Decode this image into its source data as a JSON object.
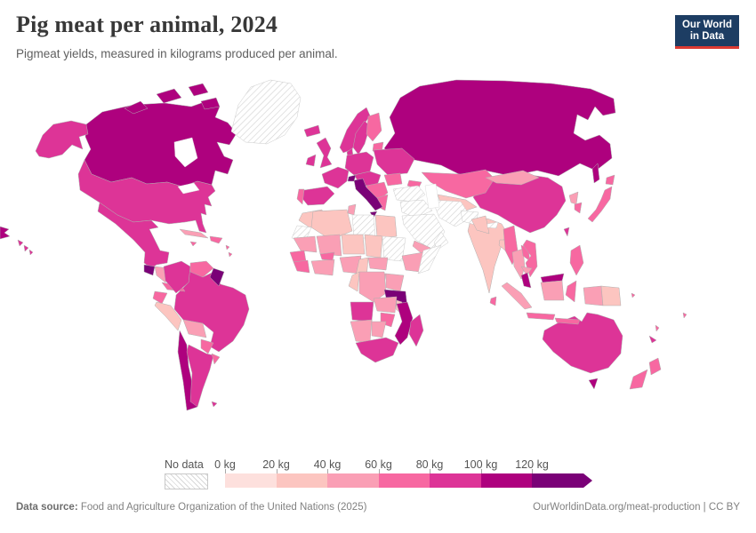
{
  "header": {
    "title": "Pig meat per animal, 2024",
    "subtitle": "Pigmeat yields, measured in kilograms produced per animal.",
    "logo": {
      "line1": "Our World",
      "line2": "in Data",
      "bg_color": "#1d3d63",
      "accent_color": "#dc3a32"
    }
  },
  "legend": {
    "no_data_label": "No data",
    "tick_labels": [
      "0 kg",
      "20 kg",
      "40 kg",
      "60 kg",
      "80 kg",
      "100 kg",
      "120 kg"
    ]
  },
  "footer": {
    "source_label": "Data source:",
    "source_text": " Food and Agriculture Organization of the United Nations (2025)",
    "credit_text": "OurWorldinData.org/meat-production | CC BY"
  },
  "chart_data": {
    "type": "heatmap",
    "subtype": "world-choropleth-map",
    "title": "Pig meat per animal, 2024",
    "unit": "kg",
    "bin_edges": [
      0,
      20,
      40,
      60,
      80,
      100,
      120
    ],
    "bin_labels": [
      "0-20 kg",
      "20-40 kg",
      "40-60 kg",
      "60-80 kg",
      "80-100 kg",
      "100-120 kg",
      "120+ kg"
    ],
    "bin_colors": [
      "#fde0dd",
      "#fcc5c0",
      "#fa9fb5",
      "#f768a1",
      "#dd3497",
      "#ae017e",
      "#7a0177"
    ],
    "no_data": {
      "label": "No data",
      "pattern": "hatched"
    },
    "border_color": "#b0b0b0",
    "regions": {
      "russia": 6,
      "canada": 6,
      "usa": 5,
      "brazil": 5,
      "china": 5,
      "australia": 5,
      "india": 2,
      "alaska": 5,
      "canadian-arctic-islands": 6,
      "greenland": 0,
      "mexico": 5,
      "guatemala": 7,
      "honduras-nicaragua": 3,
      "costa-rica-panama": 4,
      "cuba": 3,
      "jamaica": 4,
      "hispaniola": 4,
      "lesser-antilles": 4,
      "hawaii": 5,
      "russia-east-wrap": 6,
      "colombia": 5,
      "venezuela": 4,
      "guyanas": 7,
      "ecuador": 4,
      "peru": 2,
      "bolivia": 3,
      "paraguay": 4,
      "chile": 6,
      "argentina": 5,
      "uruguay": 4,
      "falkland-islands": 5,
      "iceland": 5,
      "ireland": 5,
      "united-kingdom": 5,
      "norway": 5,
      "sweden": 5,
      "finland": 4,
      "baltics": 4,
      "denmark": 5,
      "germany-poland": 5,
      "france": 5,
      "spain": 5,
      "portugal": 4,
      "eastern-europe": 5,
      "ukraine-belarus": 5,
      "romania": 4,
      "balkans": 4,
      "greece": 4,
      "italy": 7,
      "switzerland": 7,
      "kazakhstan": 4,
      "caucasus": 4,
      "central-asia": 2,
      "turkey": 0,
      "levant-iraq": 0,
      "saudi-arabia": 0,
      "iran": 0,
      "afghanistan": 0,
      "pakistan": 2,
      "oman": 0,
      "yemen": 3,
      "morocco": 2,
      "western-sahara": 0,
      "algeria": 2,
      "tunisia": 3,
      "libya": 0,
      "egypt": 2,
      "mauritania": 3,
      "mali": 3,
      "niger": 2,
      "chad": 2,
      "sudan": 0,
      "senegal-gambia": 4,
      "guinea-sierra-leone": 4,
      "ivory-coast-ghana": 3,
      "burkina-faso": 4,
      "nigeria": 3,
      "cameroon": 2,
      "central-african-republic": 3,
      "ethiopia": 3,
      "somalia": 0,
      "kenya": 3,
      "uganda": 3,
      "dr-congo": 3,
      "congo-gabon": 2,
      "tanzania": 7,
      "angola": 5,
      "zambia": 3,
      "malawi": 2,
      "mozambique": 6,
      "zimbabwe": 4,
      "namibia": 3,
      "botswana": 3,
      "south-africa": 5,
      "madagascar": 5,
      "mongolia": 3,
      "nepal": 0,
      "bangladesh": 2,
      "sri-lanka": 4,
      "myanmar": 4,
      "thailand": 3,
      "laos": 4,
      "vietnam": 4,
      "cambodia": 3,
      "malaysia-peninsula": 6,
      "sumatra": 3,
      "malaysia-borneo": 6,
      "kalimantan": 3,
      "java": 4,
      "sulawesi": 4,
      "lesser-sunda": 4,
      "west-papua": 3,
      "papua-new-guinea": 2,
      "philippines": 4,
      "taiwan": 5,
      "north-korea": 3,
      "south-korea": 4,
      "japan": 4,
      "sakhalin": 6,
      "tasmania": 6,
      "new-zealand-north": 4,
      "new-zealand-south": 4,
      "fiji": 4,
      "vanuatu": 4,
      "new-caledonia": 5,
      "solomon-islands": 4
    }
  }
}
